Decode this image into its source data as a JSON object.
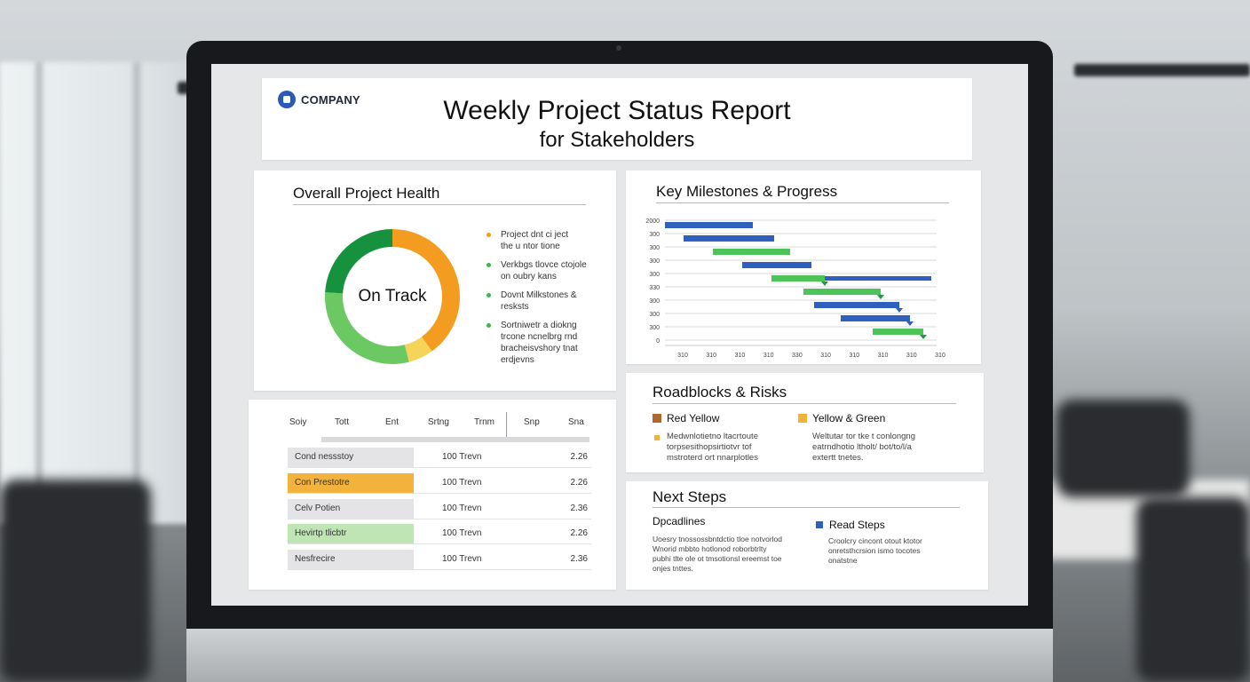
{
  "header": {
    "logo_text": "COMPANY",
    "title": "Weekly Project Status Report",
    "subtitle": "for Stakeholders"
  },
  "health": {
    "title": "Overall Project Health",
    "status": "On Track",
    "donut": [
      {
        "color": "#f39c1f",
        "fraction": 0.4
      },
      {
        "color": "#f6d45a",
        "fraction": 0.06
      },
      {
        "color": "#6cc862",
        "fraction": 0.3
      },
      {
        "color": "#16923f",
        "fraction": 0.24
      }
    ],
    "items": [
      {
        "text": "Project dnt ci ject\nthe u ntor tione",
        "color": "#f39c1f"
      },
      {
        "text": "Verkbgs tlovce ctojole\non oubry kans",
        "color": "#3fb54e"
      },
      {
        "text": "Dovnt Milkstones &\nresksts",
        "color": "#3fb54e"
      },
      {
        "text": "Sortniwetr a diokng\ntrcone ncnelbrg rnd\nbracheisvshory tnat\nerdjevns",
        "color": "#3fb54e"
      }
    ]
  },
  "milestones": {
    "title": "Key Milestones & Progress",
    "y_labels": [
      "2000",
      "300",
      "300",
      "300",
      "300",
      "330",
      "300",
      "300",
      "300",
      "0"
    ],
    "x_labels": [
      "310",
      "310",
      "310",
      "310",
      "330",
      "310",
      "310",
      "310",
      "310",
      "310"
    ],
    "bars": [
      {
        "start": 0,
        "end": 0.33,
        "color": "#2f5fbf"
      },
      {
        "start": 0.07,
        "end": 0.41,
        "color": "#2f5fbf"
      },
      {
        "start": 0.18,
        "end": 0.47,
        "color": "#4cc45a"
      },
      {
        "start": 0.29,
        "end": 0.55,
        "color": "#2f5fbf"
      },
      {
        "start": 0.4,
        "end": 0.6,
        "color": "#4cc45a",
        "extra_start": 0.6,
        "extra_end": 1.0,
        "extra_color": "#2f5fbf"
      },
      {
        "start": 0.52,
        "end": 0.81,
        "color": "#4cc45a"
      },
      {
        "start": 0.56,
        "end": 0.88,
        "color": "#2f5fbf"
      },
      {
        "start": 0.66,
        "end": 0.92,
        "color": "#2f5fbf"
      },
      {
        "start": 0.78,
        "end": 0.97,
        "color": "#4cc45a"
      }
    ]
  },
  "table": {
    "headers": [
      "Soiy",
      "Tott",
      "Ent",
      "Srtng",
      "Trnm",
      "Snp",
      "Sna"
    ],
    "rows": [
      {
        "name": "Cond nessstoy",
        "value": "100 Trevn",
        "num": "2.26",
        "bg": "#e4e4e6"
      },
      {
        "name": "Con Prestotre",
        "value": "100 Trevn",
        "num": "2.26",
        "bg": "#f2b23c"
      },
      {
        "name": "Celv Potien",
        "value": "100 Trevn",
        "num": "2.36",
        "bg": "#e4e4e6"
      },
      {
        "name": "Hevirtp tlicbtr",
        "value": "100 Trevn",
        "num": "2.26",
        "bg": "#bfe5b5"
      },
      {
        "name": "Nesfrecire",
        "value": "100 Trevn",
        "num": "2.36",
        "bg": "#e4e4e6"
      }
    ]
  },
  "risks": {
    "title": "Roadblocks & Risks",
    "left_head": "Red Yellow",
    "left_color": "#b0692d",
    "left_body": "Medwnlotietno ltacrtoute\ntorpsesithopsirtiotvr tof\nmstroterd ort nnarplotles",
    "left_bullet": "#f2b23c",
    "right_head": "Yellow & Green",
    "right_color": "#f2b23c",
    "right_body": "Weltutar tor tke t conlongng\neatrndhotio ltholt/ bot/to/l/a\nextertt tnetes."
  },
  "next": {
    "title": "Next Steps",
    "left_head": "Dpcadlines",
    "left_body": "Uoesry tnossossbntdctio tloe notvorlod\nWnorid mbbto hotlonod roborbtrlty\npubhi tlte ole ot tmsotionsl ereemst toe\nonjes tnttes.",
    "right_head": "Read Steps",
    "right_color": "#2f5fbf",
    "right_body": "Croolcry cincont otout ktotor\nonretsthcrsion ismo tocotes\nonatstne"
  }
}
